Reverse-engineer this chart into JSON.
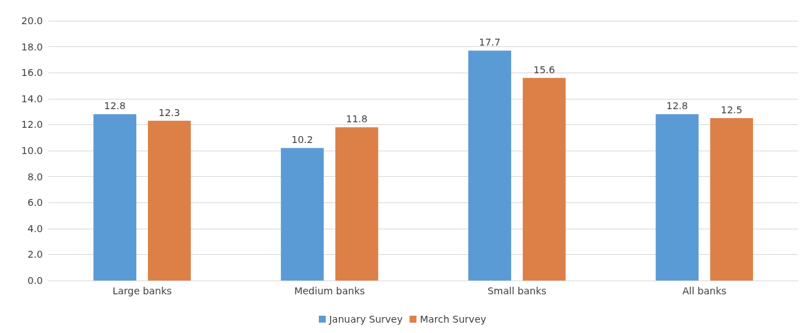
{
  "chart_data": {
    "type": "bar",
    "categories": [
      "Large banks",
      "Medium banks",
      "Small banks",
      "All banks"
    ],
    "series": [
      {
        "name": "January Survey",
        "color": "#5b9bd5",
        "values": [
          12.8,
          10.2,
          17.7,
          12.8
        ]
      },
      {
        "name": "March Survey",
        "color": "#dd8047",
        "values": [
          12.3,
          11.8,
          15.6,
          12.5
        ]
      }
    ],
    "ylim": [
      0,
      20
    ],
    "yticks": [
      {
        "value": 0,
        "label": "0.0"
      },
      {
        "value": 2,
        "label": "2.0"
      },
      {
        "value": 4,
        "label": "4.0"
      },
      {
        "value": 6,
        "label": "6.0"
      },
      {
        "value": 8,
        "label": "8.0"
      },
      {
        "value": 10,
        "label": "10.0"
      },
      {
        "value": 12,
        "label": "12.0"
      },
      {
        "value": 14,
        "label": "14.0"
      },
      {
        "value": 16,
        "label": "16.0"
      },
      {
        "value": 18,
        "label": "18.0"
      },
      {
        "value": 20,
        "label": "20.0"
      }
    ],
    "grid": "y",
    "legend": "bottom",
    "data_labels": true
  }
}
